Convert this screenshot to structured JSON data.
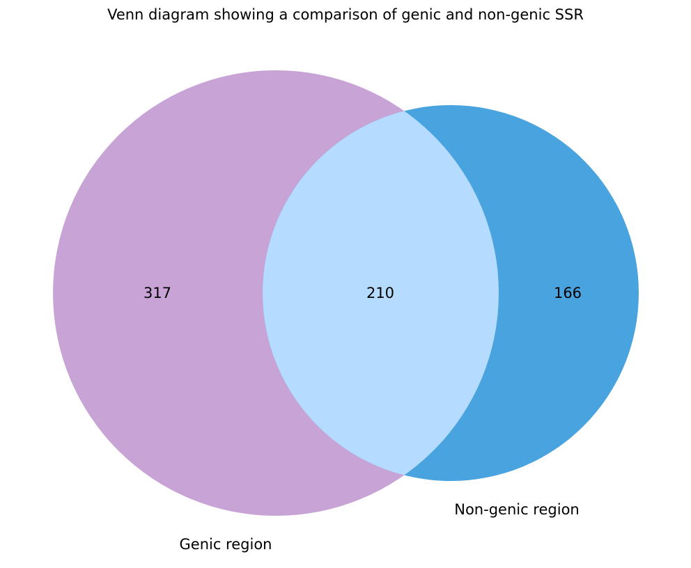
{
  "title": "Venn diagram showing a comparison of genic and non-genic SSR",
  "sets": [
    {
      "name": "Genic region",
      "color": "#c8a3d6"
    },
    {
      "name": "Non-genic region",
      "color": "#49a3de"
    }
  ],
  "intersection_color": "#b5dcff",
  "counts": {
    "only_genic": "317",
    "both": "210",
    "only_non_genic": "166"
  }
}
